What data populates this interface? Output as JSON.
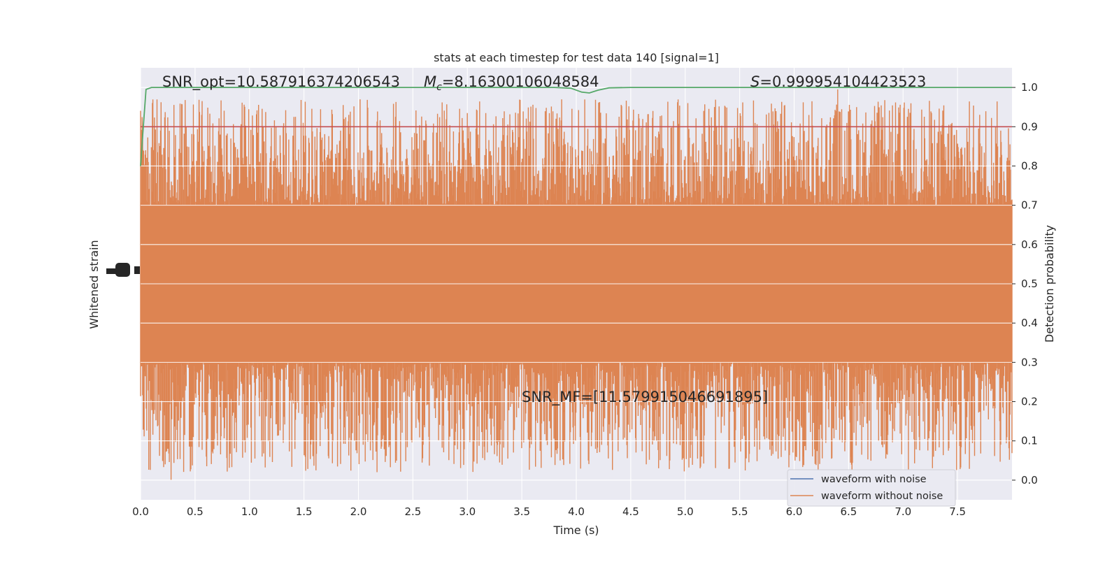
{
  "chart_data": {
    "type": "line",
    "title": "stats at each timestep for test data 140 [signal=1]",
    "xlabel": "Time (s)",
    "ylabel_left": "Whitened strain",
    "ylabel_right": "Detection probability",
    "xlim": [
      0.0,
      8.0
    ],
    "ylim_right": [
      -0.05,
      1.05
    ],
    "xticks": [
      "0.0",
      "0.5",
      "1.0",
      "1.5",
      "2.0",
      "2.5",
      "3.0",
      "3.5",
      "4.0",
      "4.5",
      "5.0",
      "5.5",
      "6.0",
      "6.5",
      "7.0",
      "7.5"
    ],
    "yticks_right": [
      "0.0",
      "0.1",
      "0.2",
      "0.3",
      "0.4",
      "0.5",
      "0.6",
      "0.7",
      "0.8",
      "0.9",
      "1.0"
    ],
    "grid": true,
    "legend_position": "lower-right",
    "annotations": {
      "snr_opt": "SNR_opt=10.587916374206543",
      "mc_symbol": "M",
      "mc_sub": "c",
      "mc_value": "=8.16300106048584",
      "s_symbol": "S",
      "s_value": "=0.999954104423523",
      "snr_mf": "SNR_MF=[11.579915046691895]"
    },
    "series": [
      {
        "name": "waveform with noise",
        "color": "#4c72b0"
      },
      {
        "name": "waveform without noise",
        "color": "#dd8452"
      }
    ],
    "detection_probability": {
      "color": "#55a868",
      "points": [
        [
          0.0,
          0.8
        ],
        [
          0.02,
          0.88
        ],
        [
          0.05,
          0.995
        ],
        [
          0.1,
          1.0
        ],
        [
          3.8,
          1.0
        ],
        [
          3.95,
          0.998
        ],
        [
          4.05,
          0.988
        ],
        [
          4.12,
          0.986
        ],
        [
          4.2,
          0.993
        ],
        [
          4.3,
          0.999
        ],
        [
          4.5,
          1.0
        ],
        [
          8.0,
          1.0
        ]
      ]
    },
    "threshold": {
      "value": 0.9,
      "color": "#c44e52"
    },
    "noise_envelope": {
      "core_low": 0.3,
      "core_high": 0.7,
      "peak_high": 0.99,
      "peak_low": 0.0
    }
  }
}
